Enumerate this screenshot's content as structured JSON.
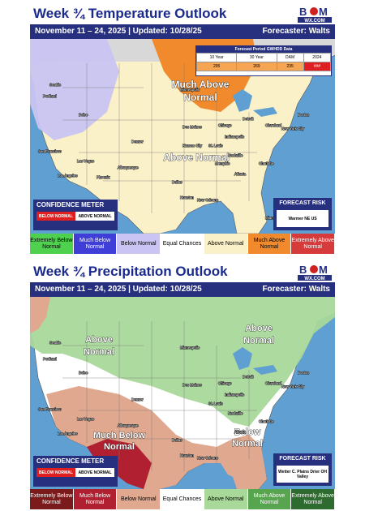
{
  "temperature": {
    "title": "Week ¾ Temperature Outlook",
    "period": "November 11 – 24, 2025 | Updated: 10/28/25",
    "forecaster": "Forecaster: Walts",
    "regions": [
      "Much Above",
      "Normal",
      "Above Normal"
    ],
    "gwhdd": {
      "header": "Forecast Period GWHDD Data",
      "columns": [
        "10 Year",
        "30 Year",
        "DAM",
        "2024"
      ],
      "values": [
        "295",
        "269",
        "235",
        "###"
      ]
    },
    "confidence": {
      "heading": "CONFIDENCE METER",
      "left": "BELOW NORMAL",
      "right": "ABOVE NORMAL"
    },
    "risk": {
      "heading": "FORECAST RISK",
      "text": "Warmer NE US"
    },
    "legend": [
      {
        "label": "Extremely Below Normal",
        "color": "#4fd04f"
      },
      {
        "label": "Much Below Normal",
        "color": "#3f3fd8"
      },
      {
        "label": "Below Normal",
        "color": "#c9c4f2"
      },
      {
        "label": "Equal Chances",
        "color": "#ffffff"
      },
      {
        "label": "Above Normal",
        "color": "#fbf1c8"
      },
      {
        "label": "Much Above Normal",
        "color": "#f08a2c"
      },
      {
        "label": "Extremely Above Normal",
        "color": "#d63a3a"
      }
    ],
    "cities": [
      "Seattle",
      "Portland",
      "Boise",
      "San Francisco",
      "Las Vegas",
      "Los Angeles",
      "Phoenix",
      "Denver",
      "Albuquerque",
      "Dallas",
      "Houston",
      "Minneapolis",
      "Chicago",
      "Des Moines",
      "Kansas City",
      "St. Louis",
      "Memphis",
      "Atlanta",
      "Charlotte",
      "Detroit",
      "Cleveland",
      "New York City",
      "Boston",
      "Miami",
      "Indianapolis",
      "Nashville",
      "New Orleans"
    ]
  },
  "precipitation": {
    "title": "Week ¾ Precipitation Outlook",
    "period": "November 11 – 24, 2025 | Updated: 10/28/25",
    "forecaster": "Forecaster: Walts",
    "regions": [
      "Above",
      "Normal",
      "Above",
      "Normal",
      "Much Below",
      "Normal",
      "Below",
      "Normal"
    ],
    "confidence": {
      "heading": "CONFIDENCE METER",
      "left": "BELOW NORMAL",
      "right": "ABOVE NORMAL"
    },
    "risk": {
      "heading": "FORECAST RISK",
      "text": "Wetter C. Plains Drier OH Valley"
    },
    "legend": [
      {
        "label": "Extremely Below Normal",
        "color": "#7a1a1a"
      },
      {
        "label": "Much Below Normal",
        "color": "#b02030"
      },
      {
        "label": "Below Normal",
        "color": "#e0a88f"
      },
      {
        "label": "Equal Chances",
        "color": "#ffffff"
      },
      {
        "label": "Above Normal",
        "color": "#a8d89a"
      },
      {
        "label": "Much Above Normal",
        "color": "#58a550"
      },
      {
        "label": "Extremely Above Normal",
        "color": "#2e6b2e"
      }
    ]
  },
  "logo_text": "BAM WX.COM"
}
